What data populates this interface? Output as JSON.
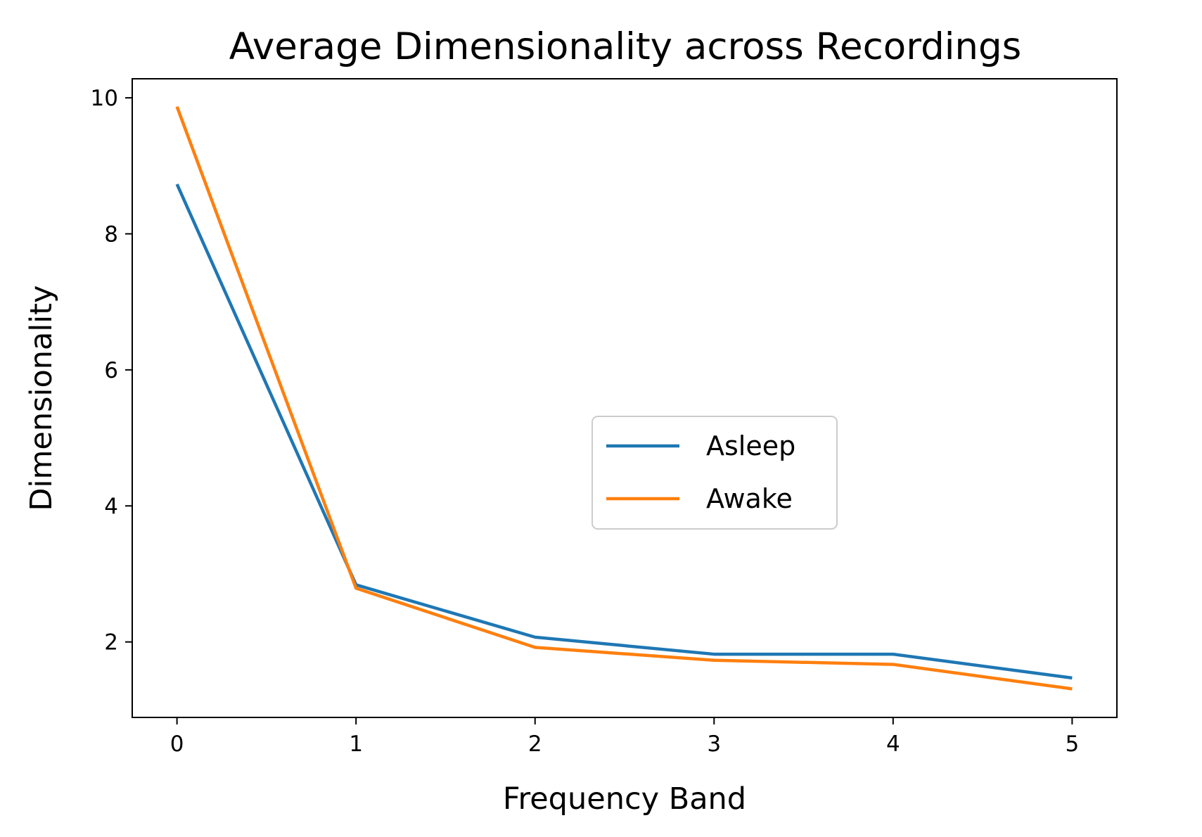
{
  "chart_data": {
    "type": "line",
    "title": "Average Dimensionality across Recordings",
    "xlabel": "Frequency Band",
    "ylabel": "Dimensionality",
    "x": [
      0,
      1,
      2,
      3,
      4,
      5
    ],
    "x_ticks": [
      "0",
      "1",
      "2",
      "3",
      "4",
      "5"
    ],
    "y_ticks": [
      "2",
      "4",
      "6",
      "8",
      "10"
    ],
    "xlim": [
      -0.25,
      5.25
    ],
    "ylim": [
      0.89,
      10.28
    ],
    "grid": false,
    "legend_position": "center-right",
    "series": [
      {
        "name": "Asleep",
        "color": "#1f77b4",
        "values": [
          8.73,
          2.84,
          2.07,
          1.82,
          1.82,
          1.47
        ]
      },
      {
        "name": "Awake",
        "color": "#ff7f0e",
        "values": [
          9.87,
          2.79,
          1.92,
          1.73,
          1.67,
          1.31
        ]
      }
    ]
  }
}
